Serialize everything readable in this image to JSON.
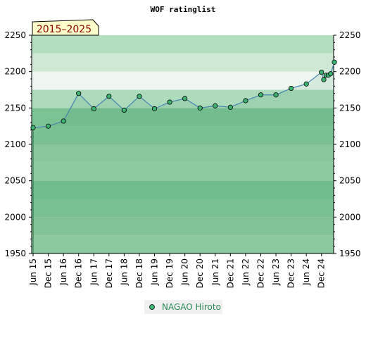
{
  "chart_data": {
    "type": "line",
    "title": "WOF ratinglist",
    "period_badge": "2015–2025",
    "xlabel": "",
    "ylabel": "",
    "ylim": [
      1950,
      2250
    ],
    "y_ticks": [
      1950,
      2000,
      2050,
      2100,
      2150,
      2200,
      2250
    ],
    "x_tick_labels": [
      "Jun 15",
      "Dec 15",
      "Jun 16",
      "Dec 16",
      "Jun 17",
      "Dec 17",
      "Jun 18",
      "Dec 18",
      "Jun 19",
      "Dec 19",
      "Jun 20",
      "Dec 20",
      "Jun 21",
      "Dec 21",
      "Jun 22",
      "Dec 22",
      "Jun 23",
      "Dec 23",
      "Jun 24",
      "Dec 24"
    ],
    "legend_position": "bottom-center",
    "grid": false,
    "series": [
      {
        "name": "NAGAO Hiroto",
        "color": "#4682b4",
        "marker_color": "#3cb371",
        "points": [
          {
            "x": 0,
            "y": 2123
          },
          {
            "x": 1,
            "y": 2125
          },
          {
            "x": 2,
            "y": 2132
          },
          {
            "x": 3,
            "y": 2170
          },
          {
            "x": 4,
            "y": 2149
          },
          {
            "x": 5,
            "y": 2166
          },
          {
            "x": 6,
            "y": 2147
          },
          {
            "x": 7,
            "y": 2166
          },
          {
            "x": 8,
            "y": 2149
          },
          {
            "x": 9,
            "y": 2158
          },
          {
            "x": 10,
            "y": 2163
          },
          {
            "x": 11,
            "y": 2150
          },
          {
            "x": 12,
            "y": 2153
          },
          {
            "x": 13,
            "y": 2151
          },
          {
            "x": 14,
            "y": 2160
          },
          {
            "x": 15,
            "y": 2168
          },
          {
            "x": 16,
            "y": 2168
          },
          {
            "x": 17,
            "y": 2177
          },
          {
            "x": 18,
            "y": 2183
          },
          {
            "x": 19.0,
            "y": 2199
          },
          {
            "x": 19.15,
            "y": 2189
          },
          {
            "x": 19.3,
            "y": 2195
          },
          {
            "x": 19.45,
            "y": 2195
          },
          {
            "x": 19.6,
            "y": 2197
          },
          {
            "x": 19.85,
            "y": 2213
          }
        ]
      }
    ]
  }
}
